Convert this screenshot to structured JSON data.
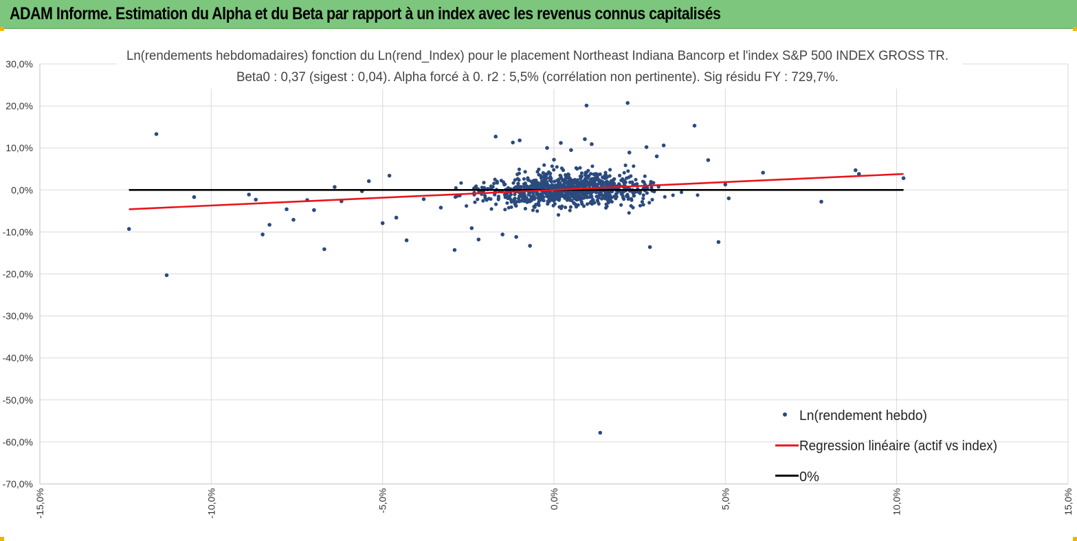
{
  "header": {
    "title": "ADAM Informe. Estimation du Alpha et du Beta par rapport à un index avec les revenus connus capitalisés"
  },
  "chart_data": {
    "type": "scatter",
    "title": "Ln(rendements hebdomadaires) fonction du Ln(rend_Index) pour le placement Northeast Indiana Bancorp et l'index S&P 500 INDEX GROSS TR.",
    "subtitle": "Beta0 : 0,37 (sigest : 0,04).  Alpha forcé à 0. r2 : 5,5% (corrélation non pertinente). Sig résidu FY : 729,7%.",
    "xlabel": "",
    "ylabel": "",
    "xlim": [
      -15,
      15
    ],
    "ylim": [
      -70,
      30
    ],
    "grid": true,
    "x_ticks": [
      -15,
      -10,
      -5,
      0,
      5,
      10,
      15
    ],
    "y_ticks": [
      30,
      20,
      10,
      0,
      -10,
      -20,
      -30,
      -40,
      -50,
      -60,
      -70
    ],
    "x_tick_labels": [
      "-15,0%",
      "-10,0%",
      "-5,0%",
      "0,0%",
      "5,0%",
      "10,0%",
      "15,0%"
    ],
    "y_tick_labels": [
      "30,0%",
      "20,0%",
      "10,0%",
      "0,0%",
      "-10,0%",
      "-20,0%",
      "-30,0%",
      "-40,0%",
      "-50,0%",
      "-60,0%",
      "-70,0%"
    ],
    "legend_position": "bottom-right",
    "series": [
      {
        "name": "Ln(rendement hebdo)",
        "kind": "scatter",
        "color": "#2b4a7e",
        "points": [
          [
            -12.4,
            -9.3
          ],
          [
            -11.6,
            13.3
          ],
          [
            -11.3,
            -20.3
          ],
          [
            -10.5,
            -1.7
          ],
          [
            -8.9,
            -1.1
          ],
          [
            -8.7,
            -2.3
          ],
          [
            -8.5,
            -10.6
          ],
          [
            -8.3,
            -8.3
          ],
          [
            -7.8,
            -4.6
          ],
          [
            -7.6,
            -7.1
          ],
          [
            -7.2,
            -2.4
          ],
          [
            -7.0,
            -4.8
          ],
          [
            -6.7,
            -14.1
          ],
          [
            -6.4,
            0.7
          ],
          [
            -6.2,
            -2.7
          ],
          [
            -5.6,
            -0.3
          ],
          [
            -5.4,
            2.1
          ],
          [
            -5.0,
            -7.9
          ],
          [
            -4.8,
            3.4
          ],
          [
            -4.6,
            -6.6
          ],
          [
            -4.3,
            -12.0
          ],
          [
            -3.8,
            -2.2
          ],
          [
            -3.3,
            -4.2
          ],
          [
            -2.9,
            -14.3
          ],
          [
            -2.4,
            -9.1
          ],
          [
            -2.2,
            -11.8
          ],
          [
            -1.7,
            12.7
          ],
          [
            -1.5,
            -10.6
          ],
          [
            -1.2,
            11.3
          ],
          [
            -1.1,
            -11.2
          ],
          [
            -1.0,
            11.8
          ],
          [
            -0.7,
            -13.3
          ],
          [
            -0.2,
            10.0
          ],
          [
            0.0,
            7.2
          ],
          [
            0.2,
            11.2
          ],
          [
            0.5,
            9.5
          ],
          [
            0.9,
            12.1
          ],
          [
            0.95,
            20.1
          ],
          [
            1.1,
            10.9
          ],
          [
            1.35,
            -57.8
          ],
          [
            2.15,
            20.7
          ],
          [
            2.2,
            8.9
          ],
          [
            2.8,
            -13.6
          ],
          [
            2.7,
            10.2
          ],
          [
            3.0,
            8.0
          ],
          [
            3.2,
            10.6
          ],
          [
            4.1,
            15.3
          ],
          [
            4.5,
            7.1
          ],
          [
            4.8,
            -12.4
          ],
          [
            5.0,
            1.3
          ],
          [
            5.1,
            -2.0
          ],
          [
            6.1,
            4.1
          ],
          [
            7.8,
            -2.8
          ],
          [
            8.8,
            4.7
          ],
          [
            8.9,
            3.8
          ],
          [
            10.2,
            2.8
          ]
        ]
      },
      {
        "name": "Regression linéaire (actif vs index)",
        "kind": "line",
        "color": "#e8141c",
        "x": [
          -12.4,
          10.2
        ],
        "y": [
          -4.6,
          3.8
        ]
      },
      {
        "name": "0%",
        "kind": "line",
        "color": "#000000",
        "x": [
          -12.4,
          10.2
        ],
        "y": [
          0,
          0
        ]
      }
    ],
    "cloud": {
      "count": 900,
      "x_mean": 0.4,
      "x_sd": 1.7,
      "beta": 0.37,
      "y_sd": 2.8,
      "x_range": [
        -4.8,
        4.9
      ],
      "color": "#2b4a7e"
    }
  }
}
